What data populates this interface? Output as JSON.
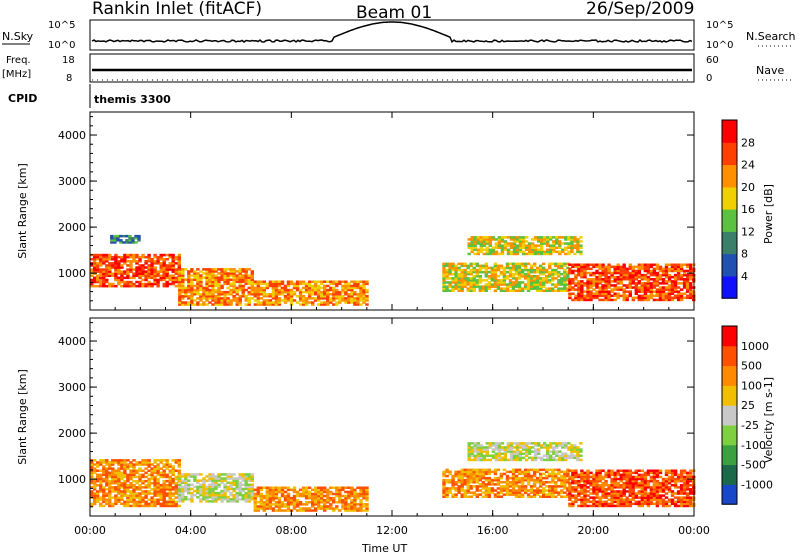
{
  "header": {
    "station": "Rankin Inlet (fitACF)",
    "beam": "Beam 01",
    "date": "26/Sep/2009"
  },
  "status_panels": {
    "nsky": {
      "label": "N.Sky",
      "ticks": [
        "10^5",
        "10^0"
      ]
    },
    "nsearch": {
      "label": "N.Search",
      "ticks": [
        "10^5",
        "10^0"
      ]
    },
    "freq": {
      "label_top": "Freq.",
      "label_bottom": "[MHz]",
      "ticks": [
        "18",
        "8"
      ]
    },
    "nave": {
      "label": "Nave",
      "ticks": [
        "60",
        "0"
      ]
    },
    "cpid": {
      "label": "CPID",
      "value": "themis 3300"
    }
  },
  "chart_data": [
    {
      "type": "heatmap",
      "panel": "power",
      "ylabel": "Slant Range [km]",
      "xlabel": "Time UT",
      "x_ticks": [
        "00:00",
        "04:00",
        "08:00",
        "12:00",
        "16:00",
        "20:00",
        "00:00"
      ],
      "y_ticks": [
        1000,
        2000,
        3000,
        4000
      ],
      "xlim_hours": [
        0,
        24
      ],
      "ylim_km": [
        200,
        4500
      ],
      "colorbar": {
        "label": "Power [dB]",
        "ticks": [
          4,
          8,
          12,
          16,
          20,
          24,
          28
        ],
        "colors": [
          "#1010ff",
          "#2050b0",
          "#3a7f6a",
          "#5cc040",
          "#f0d000",
          "#ff9000",
          "#ff4000",
          "#ff0000"
        ]
      },
      "echo_regions": [
        {
          "t0": 0.0,
          "t1": 3.5,
          "r0": 700,
          "r1": 1400,
          "level": 6
        },
        {
          "t0": 3.5,
          "t1": 6.5,
          "r0": 300,
          "r1": 1100,
          "level": 5
        },
        {
          "t0": 6.5,
          "t1": 11.0,
          "r0": 300,
          "r1": 800,
          "level": 5
        },
        {
          "t0": 0.8,
          "t1": 2.0,
          "r0": 1650,
          "r1": 1800,
          "level": 2
        },
        {
          "t0": 14.0,
          "t1": 19.0,
          "r0": 600,
          "r1": 1200,
          "level": 4
        },
        {
          "t0": 15.0,
          "t1": 19.5,
          "r0": 1400,
          "r1": 1800,
          "level": 4
        },
        {
          "t0": 19.0,
          "t1": 24.0,
          "r0": 400,
          "r1": 1200,
          "level": 6
        }
      ]
    },
    {
      "type": "heatmap",
      "panel": "velocity",
      "ylabel": "Slant Range [km]",
      "xlabel": "Time UT",
      "x_ticks": [
        "00:00",
        "04:00",
        "08:00",
        "12:00",
        "16:00",
        "20:00",
        "00:00"
      ],
      "y_ticks": [
        1000,
        2000,
        3000,
        4000
      ],
      "xlim_hours": [
        0,
        24
      ],
      "ylim_km": [
        200,
        4500
      ],
      "colorbar": {
        "label": "Velocity [m s-1]",
        "ticks": [
          1000,
          500,
          100,
          25,
          -25,
          -100,
          -500,
          -1000
        ],
        "colors": [
          "#1848c8",
          "#1a6a4a",
          "#3aa040",
          "#7ed040",
          "#c8c8c8",
          "#f0c000",
          "#ff8a00",
          "#ff5000",
          "#ff0000"
        ]
      },
      "echo_regions": [
        {
          "t0": 0.0,
          "t1": 3.5,
          "r0": 400,
          "r1": 1400,
          "level": 6
        },
        {
          "t0": 3.5,
          "t1": 6.5,
          "r0": 500,
          "r1": 1100,
          "level": 4
        },
        {
          "t0": 6.5,
          "t1": 11.0,
          "r0": 300,
          "r1": 800,
          "level": 6
        },
        {
          "t0": 14.0,
          "t1": 19.0,
          "r0": 600,
          "r1": 1200,
          "level": 6
        },
        {
          "t0": 15.0,
          "t1": 19.5,
          "r0": 1400,
          "r1": 1800,
          "level": 4
        },
        {
          "t0": 19.0,
          "t1": 24.0,
          "r0": 400,
          "r1": 1200,
          "level": 7
        }
      ]
    }
  ]
}
